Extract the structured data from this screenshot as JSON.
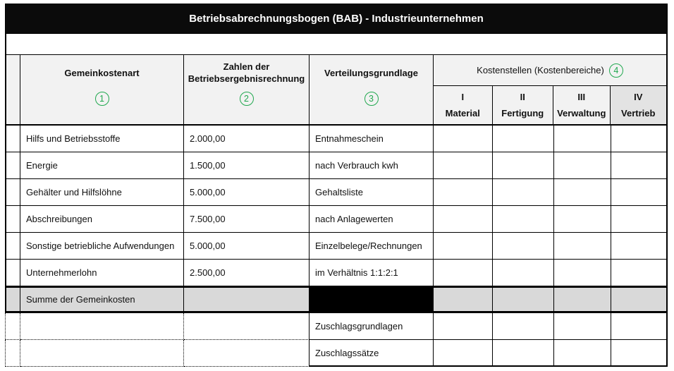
{
  "title": "Betriebsabrechnungsbogen (BAB) - Industrieunternehmen",
  "colors": {
    "black_bar": "#0b0b0b",
    "green": "#21a84f",
    "header_bg": "#f2f2f2",
    "vertrieb_bg": "#e3e3e3",
    "summe_bg": "#d9d9d9"
  },
  "header": {
    "gemeinkostenart": {
      "label": "Gemeinkostenart",
      "badge": "1"
    },
    "zahlen": {
      "label": "Zahlen der Betriebsergebnisrechnung",
      "badge": "2"
    },
    "verteilungsgrundlage": {
      "label": "Verteilungsgrundlage",
      "badge": "3"
    },
    "kostenstellen": {
      "label": "Kostenstellen (Kostenbereiche)",
      "badge": "4",
      "sub_columns": [
        {
          "numeral": "I",
          "label": "Material"
        },
        {
          "numeral": "II",
          "label": "Fertigung"
        },
        {
          "numeral": "III",
          "label": "Verwaltung"
        },
        {
          "numeral": "IV",
          "label": "Vertrieb"
        }
      ]
    }
  },
  "rows": [
    {
      "art": "Hilfs und Betriebsstoffe",
      "zahl": "2.000,00",
      "grundlage": "Entnahmeschein"
    },
    {
      "art": "Energie",
      "zahl": "1.500,00",
      "grundlage": "nach Verbrauch kwh"
    },
    {
      "art": "Gehälter und Hilfslöhne",
      "zahl": "5.000,00",
      "grundlage": "Gehaltsliste"
    },
    {
      "art": "Abschreibungen",
      "zahl": "7.500,00",
      "grundlage": "nach Anlagewerten"
    },
    {
      "art": "Sonstige betriebliche Aufwendungen",
      "zahl": "5.000,00",
      "grundlage": "Einzelbelege/Rechnungen"
    },
    {
      "art": "Unternehmerlohn",
      "zahl": "2.500,00",
      "grundlage": "im Verhältnis 1:1:2:1"
    }
  ],
  "summary_row": {
    "label": "Summe der Gemeinkosten"
  },
  "footer_rows": [
    {
      "label": "Zuschlagsgrundlagen"
    },
    {
      "label": "Zuschlagssätze"
    }
  ]
}
